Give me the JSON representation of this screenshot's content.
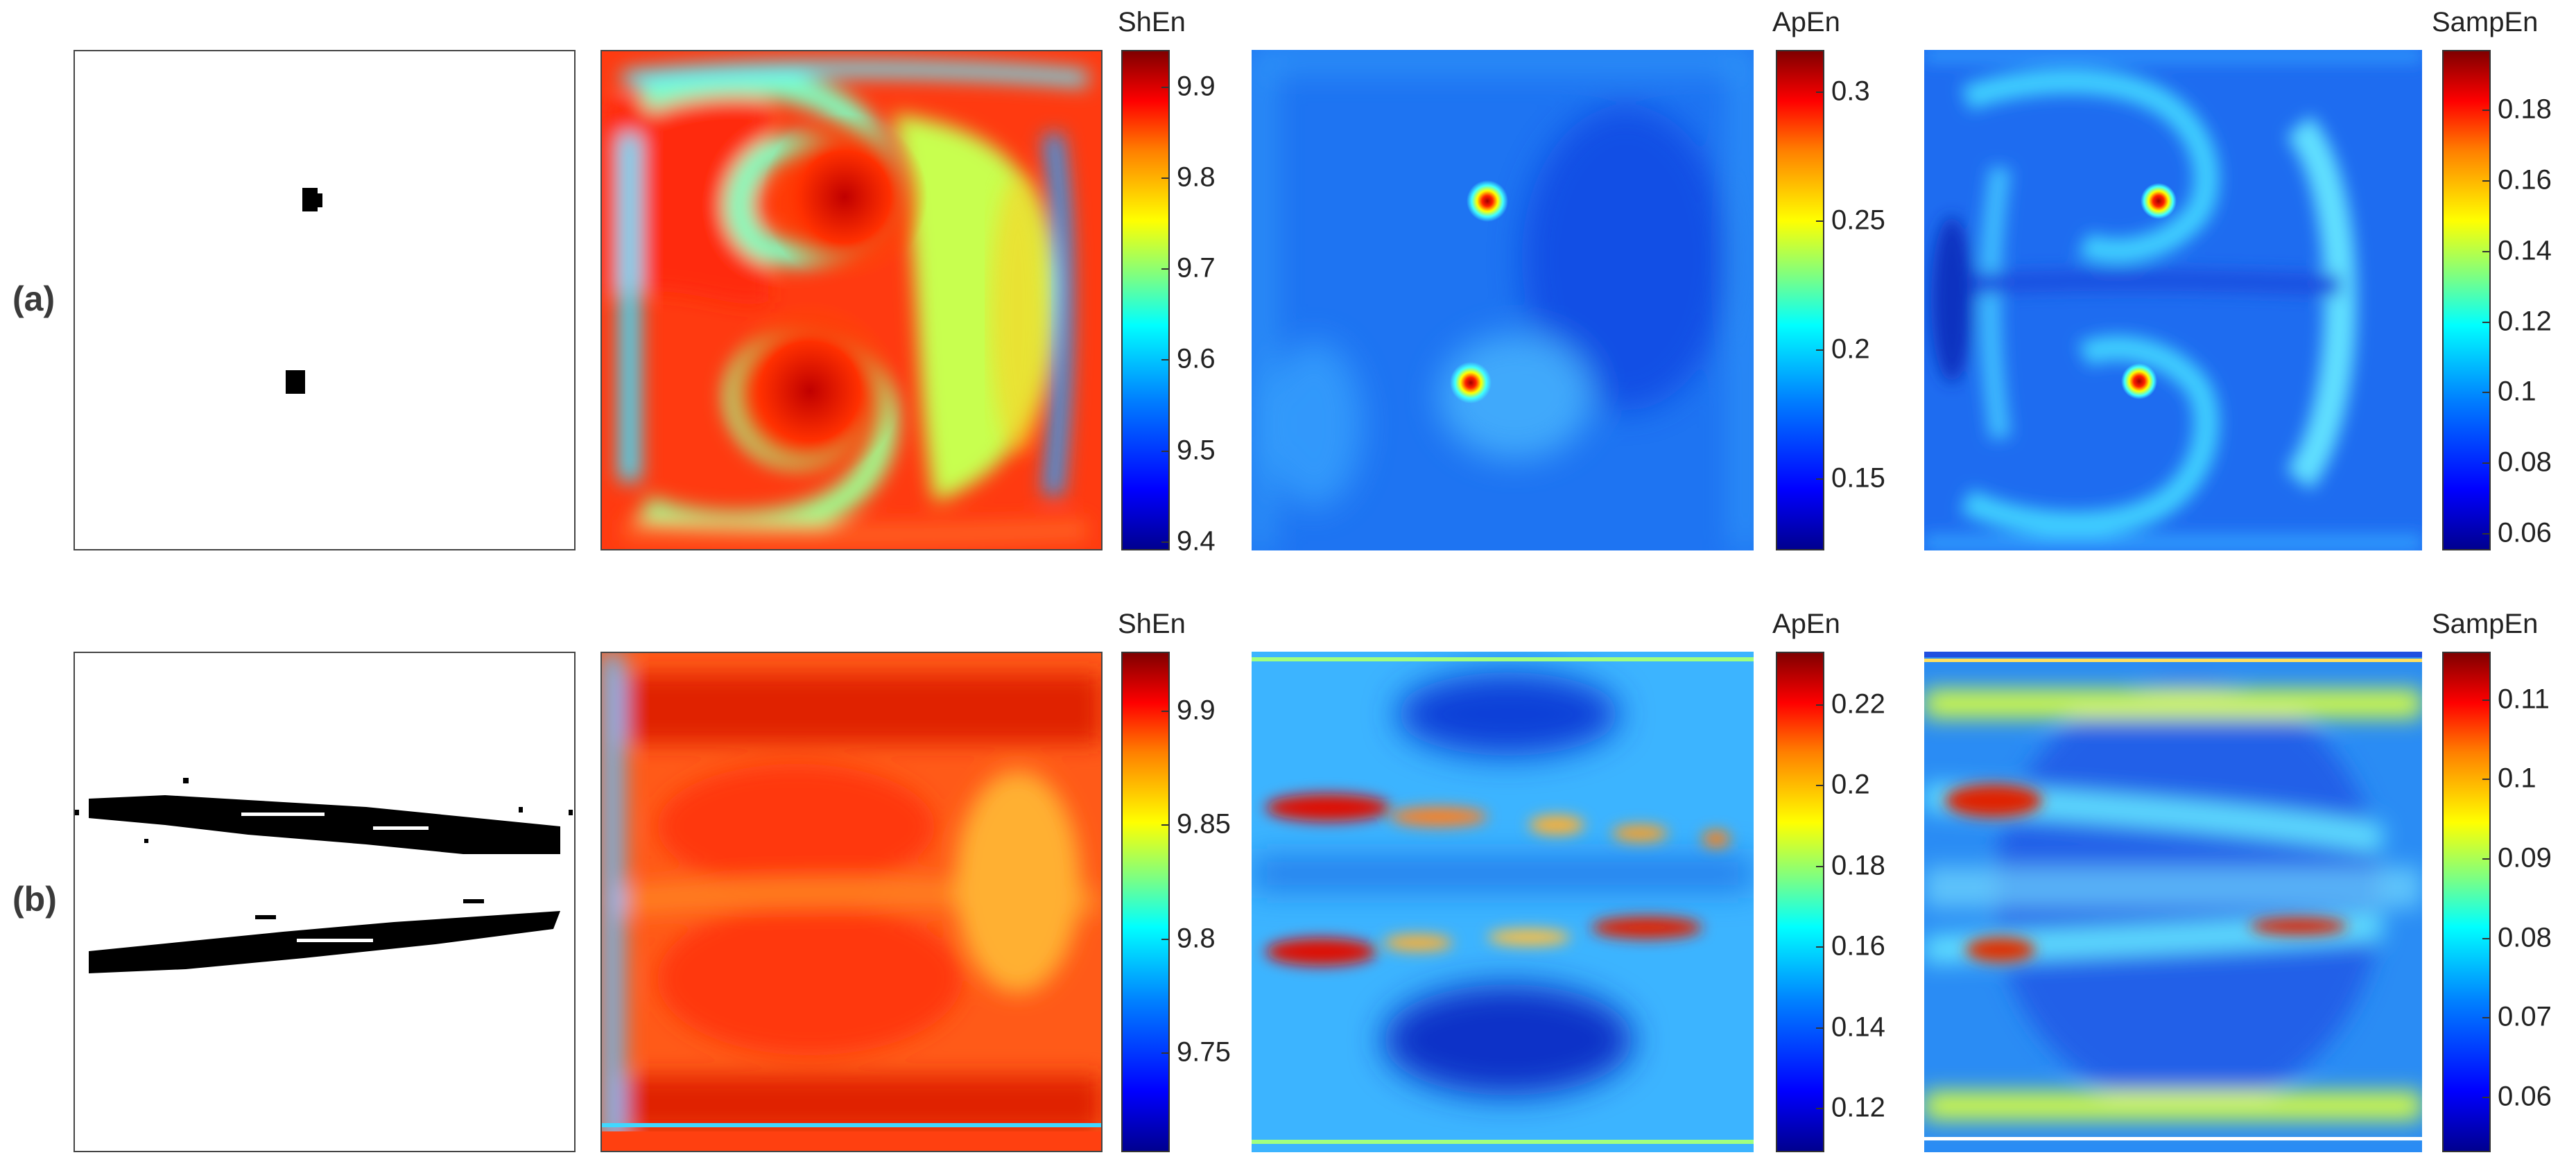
{
  "figure": {
    "rows": [
      {
        "label": "(a)",
        "colorbars": [
          {
            "title": "ShEn",
            "ticks": [
              "9.9",
              "9.8",
              "9.7",
              "9.6",
              "9.5",
              "9.4"
            ],
            "tick_values": [
              9.9,
              9.8,
              9.7,
              9.6,
              9.5,
              9.4
            ],
            "range": [
              9.39,
              9.94
            ]
          },
          {
            "title": "ApEn",
            "ticks": [
              "0.3",
              "0.25",
              "0.2",
              "0.15"
            ],
            "tick_values": [
              0.3,
              0.25,
              0.2,
              0.15
            ],
            "range": [
              0.122,
              0.316
            ]
          },
          {
            "title": "SampEn",
            "ticks": [
              "0.18",
              "0.16",
              "0.14",
              "0.12",
              "0.1",
              "0.08",
              "0.06"
            ],
            "tick_values": [
              0.18,
              0.16,
              0.14,
              0.12,
              0.1,
              0.08,
              0.06
            ],
            "range": [
              0.055,
              0.197
            ]
          }
        ]
      },
      {
        "label": "(b)",
        "colorbars": [
          {
            "title": "ShEn",
            "ticks": [
              "9.9",
              "9.85",
              "9.8",
              "9.75"
            ],
            "tick_values": [
              9.9,
              9.85,
              9.8,
              9.75
            ],
            "range": [
              9.706,
              9.926
            ]
          },
          {
            "title": "ApEn",
            "ticks": [
              "0.22",
              "0.2",
              "0.18",
              "0.16",
              "0.14",
              "0.12"
            ],
            "tick_values": [
              0.22,
              0.2,
              0.18,
              0.16,
              0.14,
              0.12
            ],
            "range": [
              0.109,
              0.233
            ]
          },
          {
            "title": "SampEn",
            "ticks": [
              "0.11",
              "0.1",
              "0.09",
              "0.08",
              "0.07",
              "0.06"
            ],
            "tick_values": [
              0.11,
              0.1,
              0.09,
              0.08,
              0.07,
              0.06
            ],
            "range": [
              0.053,
              0.116
            ]
          }
        ]
      }
    ],
    "colormap": "jet",
    "colors": {
      "jet_low": "#00008f",
      "jet_mid": "#00ffff",
      "jet_high": "#800000",
      "binary": "#000000"
    }
  },
  "chart_data": [
    {
      "type": "heatmap",
      "row": "(a)",
      "colorbar_label": "ShEn",
      "range": [
        9.39,
        9.94
      ],
      "colormap": "jet"
    },
    {
      "type": "heatmap",
      "row": "(a)",
      "colorbar_label": "ApEn",
      "range": [
        0.122,
        0.316
      ],
      "colormap": "jet"
    },
    {
      "type": "heatmap",
      "row": "(a)",
      "colorbar_label": "SampEn",
      "range": [
        0.055,
        0.197
      ],
      "colormap": "jet"
    },
    {
      "type": "heatmap",
      "row": "(b)",
      "colorbar_label": "ShEn",
      "range": [
        9.706,
        9.926
      ],
      "colormap": "jet"
    },
    {
      "type": "heatmap",
      "row": "(b)",
      "colorbar_label": "ApEn",
      "range": [
        0.109,
        0.233
      ],
      "colormap": "jet"
    },
    {
      "type": "heatmap",
      "row": "(b)",
      "colorbar_label": "SampEn",
      "range": [
        0.053,
        0.116
      ],
      "colormap": "jet"
    }
  ]
}
